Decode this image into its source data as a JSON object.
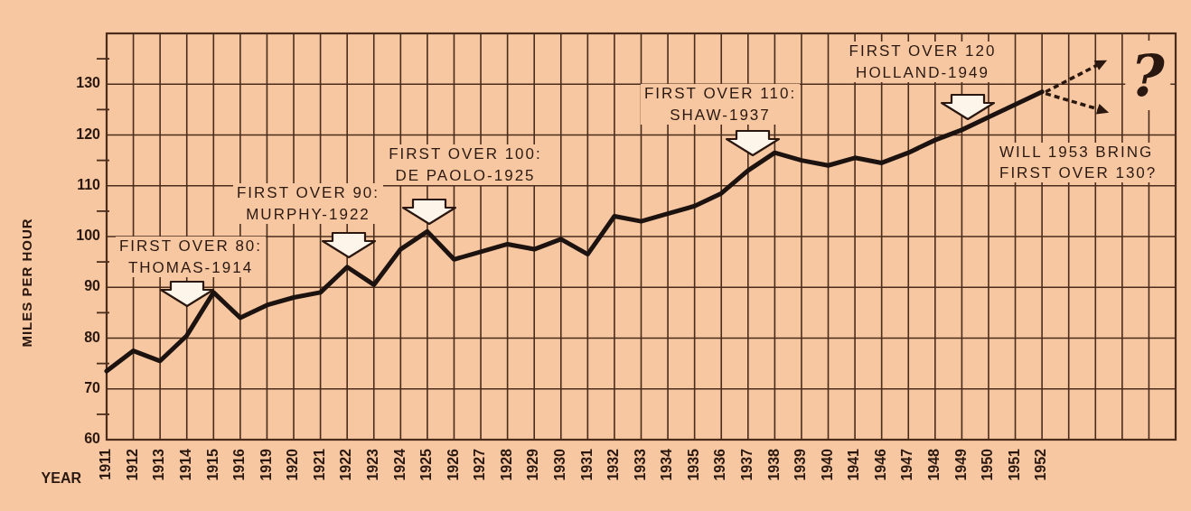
{
  "chart_data": {
    "type": "line",
    "xlabel": "YEAR",
    "ylabel": "MILES PER HOUR",
    "categories": [
      "1911",
      "1912",
      "1913",
      "1914",
      "1915",
      "1916",
      "1919",
      "1920",
      "1921",
      "1922",
      "1923",
      "1924",
      "1925",
      "1926",
      "1927",
      "1928",
      "1929",
      "1930",
      "1931",
      "1932",
      "1933",
      "1934",
      "1935",
      "1936",
      "1937",
      "1938",
      "1939",
      "1940",
      "1941",
      "1946",
      "1947",
      "1948",
      "1949",
      "1950",
      "1951",
      "1952",
      null,
      null,
      null,
      null,
      null
    ],
    "series": [
      {
        "color": "#1c1210",
        "values": [
          73.5,
          77.5,
          75.5,
          80.5,
          89,
          84,
          86.5,
          88,
          89,
          94,
          90.5,
          97.5,
          101,
          95.5,
          97,
          98.5,
          97.5,
          99.5,
          96.5,
          104,
          103,
          104.5,
          106,
          108.5,
          113,
          116.5,
          115,
          114,
          115.5,
          114.5,
          116.5,
          119,
          121,
          123.5,
          126,
          128.5,
          null,
          null,
          null,
          null,
          null
        ]
      }
    ],
    "ylim": [
      60,
      140
    ],
    "yticks": [
      60,
      {
        "value": 65,
        "label": null
      },
      70,
      {
        "value": 75,
        "label": null
      },
      80,
      {
        "value": 85,
        "label": null
      },
      90,
      {
        "value": 95,
        "label": null
      },
      100,
      {
        "value": 105,
        "label": null
      },
      110,
      {
        "value": 115,
        "label": null
      },
      120,
      {
        "value": 125,
        "label": null
      },
      130,
      {
        "value": 135,
        "label": null
      }
    ],
    "grid": true,
    "annotations": [
      "FIRST OVER 80:\nTHOMAS-1914",
      "FIRST OVER 90:\nMURPHY-1922",
      "FIRST OVER 100:\nDE PAOLO-1925",
      "FIRST OVER 110:\nSHAW-1937",
      "FIRST OVER 120\nHOLLAND-1949",
      "WILL 1953 BRING\nFIRST OVER 130?",
      "?"
    ]
  }
}
